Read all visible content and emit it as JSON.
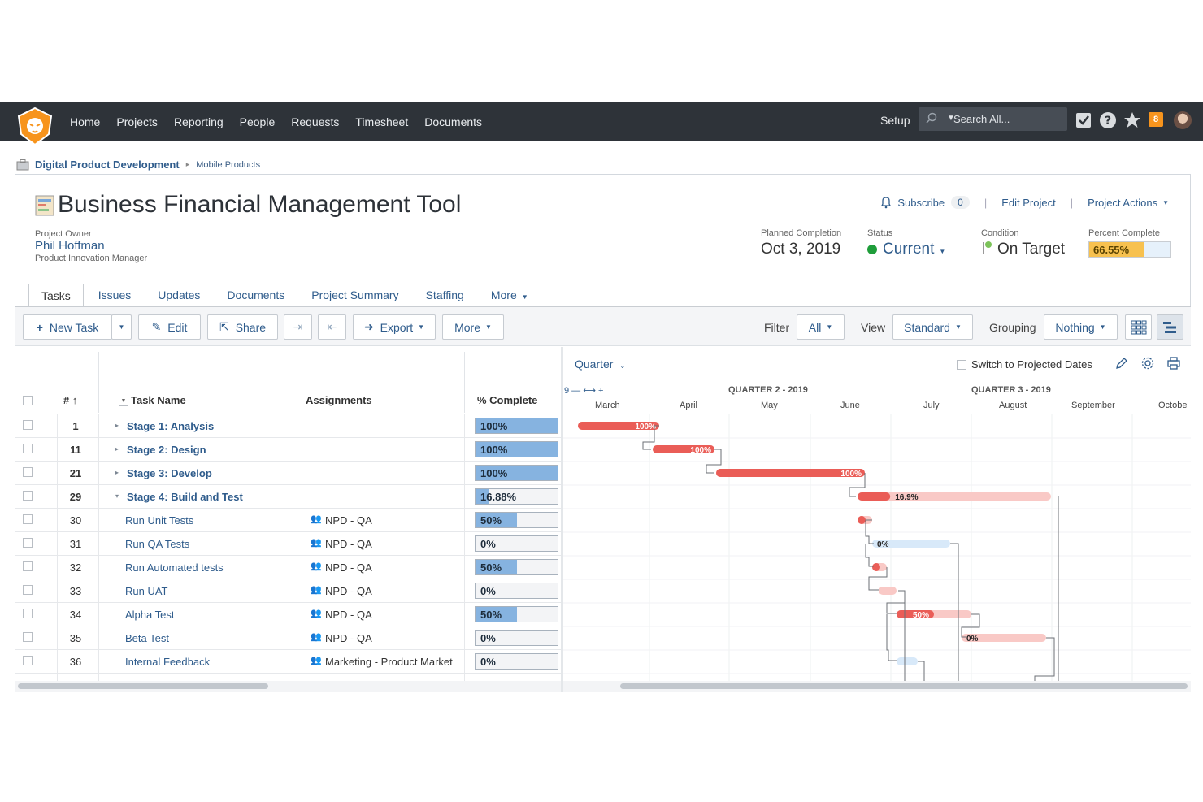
{
  "nav": {
    "items": [
      "Home",
      "Projects",
      "Reporting",
      "People",
      "Requests",
      "Timesheet",
      "Documents"
    ],
    "setup": "Setup",
    "search_placeholder": "Search All...",
    "notification_count": "8"
  },
  "breadcrumb": {
    "parent": "Digital Product Development",
    "current": "Mobile Products"
  },
  "project": {
    "title": "Business Financial Management Tool",
    "owner_label": "Project Owner",
    "owner_name": "Phil Hoffman",
    "owner_role": "Product Innovation Manager",
    "subscribe": "Subscribe",
    "subscribe_count": "0",
    "edit": "Edit Project",
    "actions": "Project Actions",
    "planned_label": "Planned Completion",
    "planned_value": "Oct 3, 2019",
    "status_label": "Status",
    "status_value": "Current",
    "condition_label": "Condition",
    "condition_value": "On Target",
    "percent_label": "Percent Complete",
    "percent_value": "66.55%",
    "percent_fraction": 0.6655
  },
  "tabs": [
    "Tasks",
    "Issues",
    "Updates",
    "Documents",
    "Project Summary",
    "Staffing",
    "More"
  ],
  "toolbar": {
    "new_task": "New Task",
    "edit": "Edit",
    "share": "Share",
    "export": "Export",
    "more": "More",
    "filter_label": "Filter",
    "filter_value": "All",
    "view_label": "View",
    "view_value": "Standard",
    "grouping_label": "Grouping",
    "grouping_value": "Nothing"
  },
  "grid": {
    "headers": {
      "num": "#",
      "task": "Task Name",
      "assign": "Assignments",
      "complete": "% Complete"
    },
    "rows": [
      {
        "num": "1",
        "name": "Stage 1: Analysis",
        "assign": "",
        "pct": "100%",
        "frac": 1.0,
        "bold": true,
        "twisty": "▸"
      },
      {
        "num": "11",
        "name": "Stage 2: Design",
        "assign": "",
        "pct": "100%",
        "frac": 1.0,
        "bold": true,
        "twisty": "▸"
      },
      {
        "num": "21",
        "name": "Stage 3: Develop",
        "assign": "",
        "pct": "100%",
        "frac": 1.0,
        "bold": true,
        "twisty": "▸"
      },
      {
        "num": "29",
        "name": "Stage 4: Build and Test",
        "assign": "",
        "pct": "16.88%",
        "frac": 0.1688,
        "bold": true,
        "twisty": "▾"
      },
      {
        "num": "30",
        "name": "Run Unit Tests",
        "assign": "NPD - QA",
        "pct": "50%",
        "frac": 0.5,
        "bold": false,
        "twisty": ""
      },
      {
        "num": "31",
        "name": "Run QA Tests",
        "assign": "NPD - QA",
        "pct": "0%",
        "frac": 0,
        "bold": false,
        "twisty": ""
      },
      {
        "num": "32",
        "name": "Run Automated tests",
        "assign": "NPD - QA",
        "pct": "50%",
        "frac": 0.5,
        "bold": false,
        "twisty": ""
      },
      {
        "num": "33",
        "name": "Run UAT",
        "assign": "NPD - QA",
        "pct": "0%",
        "frac": 0,
        "bold": false,
        "twisty": ""
      },
      {
        "num": "34",
        "name": "Alpha Test",
        "assign": "NPD - QA",
        "pct": "50%",
        "frac": 0.5,
        "bold": false,
        "twisty": ""
      },
      {
        "num": "35",
        "name": "Beta Test",
        "assign": "NPD - QA",
        "pct": "0%",
        "frac": 0,
        "bold": false,
        "twisty": ""
      },
      {
        "num": "36",
        "name": "Internal Feedback",
        "assign": "Marketing - Product Market",
        "pct": "0%",
        "frac": 0,
        "bold": false,
        "twisty": ""
      }
    ]
  },
  "gantt": {
    "scale": "Quarter",
    "switch_label": "Switch to Projected Dates",
    "zoom_controls": "9 — ⟷ +",
    "quarters": [
      "QUARTER 2 - 2019",
      "QUARTER 3 - 2019"
    ],
    "months": [
      "March",
      "April",
      "May",
      "June",
      "July",
      "August",
      "September",
      "Octobe"
    ],
    "bars": [
      {
        "label": "100%",
        "progress": 1.0
      },
      {
        "label": "100%",
        "progress": 1.0
      },
      {
        "label": "100%",
        "progress": 1.0
      },
      {
        "label": "16.9%",
        "progress": 0.169
      },
      {
        "label": "",
        "progress": 0.5
      },
      {
        "label": "0%",
        "progress": 0
      },
      {
        "label": "",
        "progress": 0.5
      },
      {
        "label": "",
        "progress": 0
      },
      {
        "label": "50%",
        "progress": 0.5
      },
      {
        "label": "0%",
        "progress": 0
      },
      {
        "label": "",
        "progress": 0
      }
    ]
  }
}
